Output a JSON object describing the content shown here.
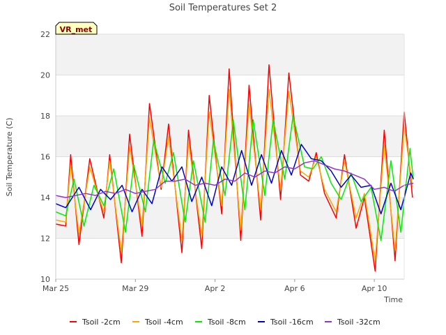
{
  "chart_data": {
    "type": "line",
    "title": "Soil Temperatures Set 2",
    "xlabel": "Time",
    "ylabel": "Soil Temperature (C)",
    "badge": "VR_met",
    "ylim": [
      10,
      22
    ],
    "yticks": [
      10,
      12,
      14,
      16,
      18,
      20,
      22
    ],
    "xlim": [
      "2024-03-25",
      "2024-04-11T12:00"
    ],
    "xticks": [
      {
        "date": "2024-03-25",
        "label": "Mar 25"
      },
      {
        "date": "2024-03-29",
        "label": "Mar 29"
      },
      {
        "date": "2024-04-02",
        "label": "Apr 2"
      },
      {
        "date": "2024-04-06",
        "label": "Apr 6"
      },
      {
        "date": "2024-04-10",
        "label": "Apr 10"
      }
    ],
    "grid": true,
    "legend_position": "bottom",
    "series": [
      {
        "name": "Tsoil -2cm",
        "color": "#ff0000",
        "points": [
          [
            "2024-03-25T00:00",
            12.7
          ],
          [
            "2024-03-25T12:00",
            12.6
          ],
          [
            "2024-03-25T18:00",
            16.1
          ],
          [
            "2024-03-26T04:00",
            11.7
          ],
          [
            "2024-03-26T17:00",
            15.9
          ],
          [
            "2024-03-27T04:00",
            14.0
          ],
          [
            "2024-03-27T10:00",
            13.0
          ],
          [
            "2024-03-27T17:00",
            16.1
          ],
          [
            "2024-03-28T07:00",
            10.8
          ],
          [
            "2024-03-28T17:00",
            17.1
          ],
          [
            "2024-03-29T08:00",
            12.1
          ],
          [
            "2024-03-29T17:00",
            18.6
          ],
          [
            "2024-03-30T07:00",
            14.4
          ],
          [
            "2024-03-30T16:00",
            17.6
          ],
          [
            "2024-03-31T08:00",
            11.3
          ],
          [
            "2024-03-31T16:00",
            17.3
          ],
          [
            "2024-04-01T08:00",
            11.5
          ],
          [
            "2024-04-01T17:00",
            19.0
          ],
          [
            "2024-04-02T08:00",
            13.2
          ],
          [
            "2024-04-02T17:00",
            20.3
          ],
          [
            "2024-04-03T07:00",
            11.9
          ],
          [
            "2024-04-03T17:00",
            19.5
          ],
          [
            "2024-04-04T07:00",
            12.9
          ],
          [
            "2024-04-04T17:00",
            20.5
          ],
          [
            "2024-04-05T07:00",
            13.9
          ],
          [
            "2024-04-05T17:00",
            20.1
          ],
          [
            "2024-04-06T07:00",
            15.1
          ],
          [
            "2024-04-06T17:00",
            14.8
          ],
          [
            "2024-04-07T02:00",
            16.2
          ],
          [
            "2024-04-07T12:00",
            14.2
          ],
          [
            "2024-04-08T02:00",
            13.0
          ],
          [
            "2024-04-08T12:00",
            16.1
          ],
          [
            "2024-04-09T02:00",
            12.5
          ],
          [
            "2024-04-09T12:00",
            14.0
          ],
          [
            "2024-04-10T01:00",
            10.4
          ],
          [
            "2024-04-10T12:00",
            17.3
          ],
          [
            "2024-04-11T01:00",
            10.9
          ],
          [
            "2024-04-11T12:00",
            18.2
          ],
          [
            "2024-04-11T22:00",
            14.0
          ]
        ]
      },
      {
        "name": "Tsoil -4cm",
        "color": "#ffa500",
        "points": [
          [
            "2024-03-25T00:00",
            12.9
          ],
          [
            "2024-03-25T12:00",
            12.8
          ],
          [
            "2024-03-25T18:00",
            15.6
          ],
          [
            "2024-03-26T04:00",
            12.2
          ],
          [
            "2024-03-26T17:00",
            15.5
          ],
          [
            "2024-03-27T04:00",
            14.0
          ],
          [
            "2024-03-27T10:00",
            13.3
          ],
          [
            "2024-03-27T17:00",
            15.8
          ],
          [
            "2024-03-28T07:00",
            11.3
          ],
          [
            "2024-03-28T17:00",
            16.5
          ],
          [
            "2024-03-29T08:00",
            12.6
          ],
          [
            "2024-03-29T17:00",
            17.9
          ],
          [
            "2024-03-30T07:00",
            14.5
          ],
          [
            "2024-03-30T16:00",
            17.0
          ],
          [
            "2024-03-31T08:00",
            11.9
          ],
          [
            "2024-03-31T16:00",
            16.7
          ],
          [
            "2024-04-01T08:00",
            12.1
          ],
          [
            "2024-04-01T17:00",
            18.2
          ],
          [
            "2024-04-02T08:00",
            13.6
          ],
          [
            "2024-04-02T17:00",
            19.3
          ],
          [
            "2024-04-03T07:00",
            12.4
          ],
          [
            "2024-04-03T17:00",
            18.6
          ],
          [
            "2024-04-04T07:00",
            13.4
          ],
          [
            "2024-04-04T17:00",
            19.3
          ],
          [
            "2024-04-05T07:00",
            14.4
          ],
          [
            "2024-04-05T17:00",
            19.2
          ],
          [
            "2024-04-06T07:00",
            15.3
          ],
          [
            "2024-04-06T17:00",
            15.0
          ],
          [
            "2024-04-07T02:00",
            16.0
          ],
          [
            "2024-04-07T12:00",
            14.4
          ],
          [
            "2024-04-08T02:00",
            13.3
          ],
          [
            "2024-04-08T12:00",
            15.8
          ],
          [
            "2024-04-09T02:00",
            13.0
          ],
          [
            "2024-04-09T12:00",
            14.2
          ],
          [
            "2024-04-10T01:00",
            10.9
          ],
          [
            "2024-04-10T12:00",
            16.6
          ],
          [
            "2024-04-11T01:00",
            11.4
          ],
          [
            "2024-04-11T12:00",
            17.5
          ],
          [
            "2024-04-11T22:00",
            14.5
          ]
        ]
      },
      {
        "name": "Tsoil -8cm",
        "color": "#00ee00",
        "points": [
          [
            "2024-03-25T00:00",
            13.3
          ],
          [
            "2024-03-25T12:00",
            13.1
          ],
          [
            "2024-03-25T22:00",
            14.9
          ],
          [
            "2024-03-26T10:00",
            12.6
          ],
          [
            "2024-03-26T22:00",
            14.6
          ],
          [
            "2024-03-27T10:00",
            13.6
          ],
          [
            "2024-03-27T22:00",
            15.4
          ],
          [
            "2024-03-28T12:00",
            12.3
          ],
          [
            "2024-03-28T22:00",
            15.6
          ],
          [
            "2024-03-29T12:00",
            13.3
          ],
          [
            "2024-03-29T22:00",
            16.8
          ],
          [
            "2024-03-30T12:00",
            14.7
          ],
          [
            "2024-03-30T22:00",
            16.2
          ],
          [
            "2024-03-31T12:00",
            12.8
          ],
          [
            "2024-03-31T22:00",
            15.8
          ],
          [
            "2024-04-01T12:00",
            12.8
          ],
          [
            "2024-04-01T22:00",
            16.8
          ],
          [
            "2024-04-02T12:00",
            14.1
          ],
          [
            "2024-04-02T22:00",
            17.8
          ],
          [
            "2024-04-03T12:00",
            13.4
          ],
          [
            "2024-04-03T22:00",
            17.8
          ],
          [
            "2024-04-04T12:00",
            14.1
          ],
          [
            "2024-04-04T22:00",
            17.8
          ],
          [
            "2024-04-05T12:00",
            14.9
          ],
          [
            "2024-04-05T22:00",
            18.0
          ],
          [
            "2024-04-06T12:00",
            15.5
          ],
          [
            "2024-04-06T22:00",
            15.4
          ],
          [
            "2024-04-07T08:00",
            16.0
          ],
          [
            "2024-04-07T20:00",
            14.7
          ],
          [
            "2024-04-08T08:00",
            13.9
          ],
          [
            "2024-04-08T20:00",
            15.2
          ],
          [
            "2024-04-09T08:00",
            13.8
          ],
          [
            "2024-04-09T20:00",
            14.5
          ],
          [
            "2024-04-10T08:00",
            11.9
          ],
          [
            "2024-04-10T20:00",
            15.8
          ],
          [
            "2024-04-11T08:00",
            12.3
          ],
          [
            "2024-04-11T19:00",
            16.4
          ],
          [
            "2024-04-11T23:00",
            14.9
          ]
        ]
      },
      {
        "name": "Tsoil -16cm",
        "color": "#0000cc",
        "points": [
          [
            "2024-03-25T00:00",
            13.7
          ],
          [
            "2024-03-25T12:00",
            13.5
          ],
          [
            "2024-03-26T04:00",
            14.5
          ],
          [
            "2024-03-26T18:00",
            13.4
          ],
          [
            "2024-03-27T06:00",
            14.4
          ],
          [
            "2024-03-27T18:00",
            13.9
          ],
          [
            "2024-03-28T08:00",
            14.6
          ],
          [
            "2024-03-28T20:00",
            13.3
          ],
          [
            "2024-03-29T08:00",
            14.4
          ],
          [
            "2024-03-29T20:00",
            13.7
          ],
          [
            "2024-03-30T08:00",
            15.5
          ],
          [
            "2024-03-30T20:00",
            14.8
          ],
          [
            "2024-03-31T08:00",
            15.5
          ],
          [
            "2024-03-31T20:00",
            13.8
          ],
          [
            "2024-04-01T08:00",
            15.0
          ],
          [
            "2024-04-01T20:00",
            13.6
          ],
          [
            "2024-04-02T08:00",
            15.5
          ],
          [
            "2024-04-02T20:00",
            14.6
          ],
          [
            "2024-04-03T08:00",
            16.3
          ],
          [
            "2024-04-03T20:00",
            14.6
          ],
          [
            "2024-04-04T08:00",
            16.1
          ],
          [
            "2024-04-04T20:00",
            14.7
          ],
          [
            "2024-04-05T08:00",
            16.3
          ],
          [
            "2024-04-05T20:00",
            15.1
          ],
          [
            "2024-04-06T08:00",
            16.6
          ],
          [
            "2024-04-06T20:00",
            15.9
          ],
          [
            "2024-04-07T08:00",
            15.8
          ],
          [
            "2024-04-07T20:00",
            15.3
          ],
          [
            "2024-04-08T08:00",
            14.5
          ],
          [
            "2024-04-08T20:00",
            15.1
          ],
          [
            "2024-04-09T08:00",
            14.5
          ],
          [
            "2024-04-09T20:00",
            14.6
          ],
          [
            "2024-04-10T08:00",
            13.2
          ],
          [
            "2024-04-10T20:00",
            14.7
          ],
          [
            "2024-04-11T08:00",
            13.4
          ],
          [
            "2024-04-11T20:00",
            15.2
          ],
          [
            "2024-04-11T23:00",
            14.9
          ]
        ]
      },
      {
        "name": "Tsoil -32cm",
        "color": "#9932cc",
        "points": [
          [
            "2024-03-25T00:00",
            14.1
          ],
          [
            "2024-03-25T12:00",
            14.0
          ],
          [
            "2024-03-26T12:00",
            14.2
          ],
          [
            "2024-03-27T00:00",
            14.1
          ],
          [
            "2024-03-27T12:00",
            14.3
          ],
          [
            "2024-03-28T00:00",
            14.2
          ],
          [
            "2024-03-28T12:00",
            14.4
          ],
          [
            "2024-03-29T00:00",
            14.2
          ],
          [
            "2024-03-29T12:00",
            14.3
          ],
          [
            "2024-03-30T00:00",
            14.4
          ],
          [
            "2024-03-30T12:00",
            14.8
          ],
          [
            "2024-03-31T00:00",
            14.8
          ],
          [
            "2024-03-31T12:00",
            14.9
          ],
          [
            "2024-04-01T00:00",
            14.6
          ],
          [
            "2024-04-01T12:00",
            14.7
          ],
          [
            "2024-04-02T00:00",
            14.6
          ],
          [
            "2024-04-02T12:00",
            14.9
          ],
          [
            "2024-04-03T00:00",
            14.8
          ],
          [
            "2024-04-03T12:00",
            15.2
          ],
          [
            "2024-04-04T00:00",
            15.0
          ],
          [
            "2024-04-04T12:00",
            15.3
          ],
          [
            "2024-04-05T00:00",
            15.2
          ],
          [
            "2024-04-05T12:00",
            15.5
          ],
          [
            "2024-04-06T00:00",
            15.4
          ],
          [
            "2024-04-06T12:00",
            15.7
          ],
          [
            "2024-04-07T00:00",
            15.8
          ],
          [
            "2024-04-07T12:00",
            15.6
          ],
          [
            "2024-04-08T00:00",
            15.4
          ],
          [
            "2024-04-08T12:00",
            15.3
          ],
          [
            "2024-04-09T00:00",
            15.1
          ],
          [
            "2024-04-09T12:00",
            14.9
          ],
          [
            "2024-04-10T00:00",
            14.4
          ],
          [
            "2024-04-10T12:00",
            14.5
          ],
          [
            "2024-04-11T00:00",
            14.3
          ],
          [
            "2024-04-11T12:00",
            14.6
          ],
          [
            "2024-04-11T23:00",
            14.7
          ]
        ]
      }
    ]
  }
}
